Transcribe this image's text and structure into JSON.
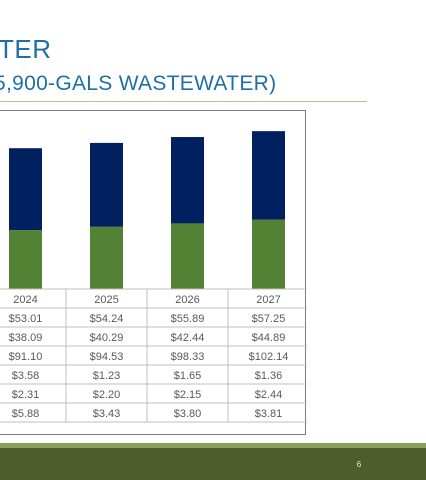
{
  "slide": {
    "title_line1": "TER",
    "title_line2": "5,900-GALS WASTEWATER)",
    "page_number": "6"
  },
  "colors": {
    "title": "#1f6fa6",
    "series_bottom": "#548235",
    "series_top": "#002060",
    "footer": "#4d5d2b",
    "footer_accent": "#8aa05a",
    "rule": "#b5c48a"
  },
  "chart_data": {
    "type": "bar",
    "stacked": true,
    "categories": [
      "2024",
      "2025",
      "2026",
      "2027"
    ],
    "series": [
      {
        "values": [
          38.09,
          40.29,
          42.44,
          44.89
        ]
      },
      {
        "values": [
          53.01,
          54.24,
          55.89,
          57.25
        ]
      }
    ],
    "table": [
      [
        "$53.01",
        "$54.24",
        "$55.89",
        "$57.25"
      ],
      [
        "$38.09",
        "$40.29",
        "$42.44",
        "$44.89"
      ],
      [
        "$91.10",
        "$94.53",
        "$98.33",
        "$102.14"
      ],
      [
        "$3.58",
        "$1.23",
        "$1.65",
        "$1.36"
      ],
      [
        "$2.31",
        "$2.20",
        "$2.15",
        "$2.44"
      ],
      [
        "$5.88",
        "$3.43",
        "$3.80",
        "$3.81"
      ]
    ],
    "ylim": [
      0,
      110
    ],
    "grid": false,
    "legend": "none"
  }
}
